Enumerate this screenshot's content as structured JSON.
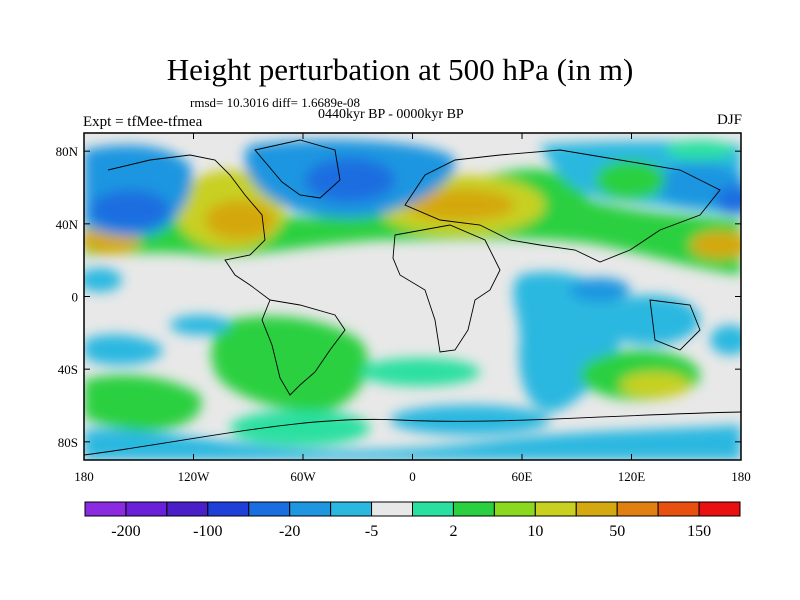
{
  "title": "Height perturbation at 500 hPa (in m)",
  "stats": "rmsd= 10.3016 diff= 1.6689e-08",
  "period": "0440kyr BP - 0000kyr BP",
  "experiment": "Expt = tfMee-tfmea",
  "season": "DJF",
  "lat_ticks": [
    {
      "label": "80N",
      "lat": 80
    },
    {
      "label": "40N",
      "lat": 40
    },
    {
      "label": "0",
      "lat": 0
    },
    {
      "label": "40S",
      "lat": -40
    },
    {
      "label": "80S",
      "lat": -80
    }
  ],
  "lon_ticks": [
    {
      "label": "180",
      "lon": -180
    },
    {
      "label": "120W",
      "lon": -120
    },
    {
      "label": "60W",
      "lon": -60
    },
    {
      "label": "0",
      "lon": 0
    },
    {
      "label": "60E",
      "lon": 60
    },
    {
      "label": "120E",
      "lon": 120
    },
    {
      "label": "180",
      "lon": 180
    }
  ],
  "colorbar": {
    "colors": [
      "#8a2be2",
      "#6a1fd8",
      "#4b1fc8",
      "#1f40d8",
      "#1a6ee0",
      "#1e96e0",
      "#2ab8e0",
      "#e8e8e8",
      "#2ae0a0",
      "#2ad040",
      "#8ad820",
      "#c8d020",
      "#d4a810",
      "#e08010",
      "#e85010",
      "#e81010"
    ],
    "labels": [
      {
        "text": "-200",
        "boundary": 1
      },
      {
        "text": "-100",
        "boundary": 3
      },
      {
        "text": "-20",
        "boundary": 5
      },
      {
        "text": "-5",
        "boundary": 7
      },
      {
        "text": "2",
        "boundary": 9
      },
      {
        "text": "10",
        "boundary": 11
      },
      {
        "text": "50",
        "boundary": 13
      },
      {
        "text": "150",
        "boundary": 15
      }
    ]
  }
}
